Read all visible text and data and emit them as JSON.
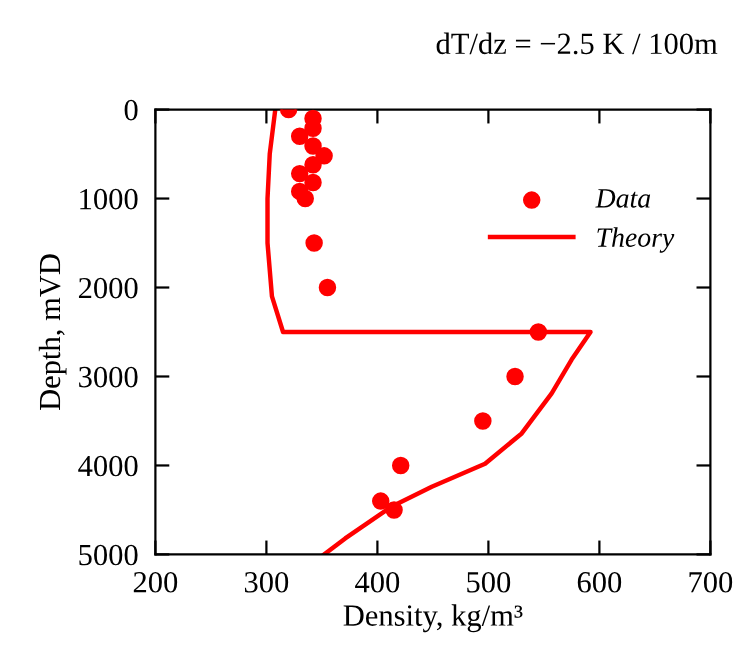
{
  "chart_data": {
    "type": "scatter",
    "xlabel": "Density, kg/m³",
    "ylabel": "Depth, mVD",
    "annotations": [
      "dT/dz = −2.5 K / 100m"
    ],
    "xlim": [
      200,
      700
    ],
    "xticks": [
      200,
      300,
      400,
      500,
      600,
      700
    ],
    "ylim": [
      5000,
      0
    ],
    "yticks": [
      0,
      1000,
      2000,
      3000,
      4000,
      5000
    ],
    "grid": false,
    "legend": "top right",
    "series": [
      {
        "name": "Data",
        "marker": "circle",
        "color": "#ff0000",
        "x": [
          320,
          342,
          342,
          330,
          342,
          352,
          342,
          330,
          342,
          330,
          335,
          343,
          355,
          545,
          524,
          495,
          421,
          403,
          415
        ],
        "values": [
          0,
          100,
          210,
          300,
          410,
          520,
          620,
          720,
          820,
          920,
          1000,
          1500,
          2000,
          2500,
          3000,
          3500,
          4000,
          4400,
          4500
        ]
      },
      {
        "name": "Theory",
        "type": "line",
        "line_style": "solid",
        "color": "#ff0000",
        "x": [
          308,
          303,
          301,
          301,
          305,
          315,
          592,
          575,
          557,
          530,
          497,
          449,
          413,
          371,
          352
        ],
        "values": [
          0,
          500,
          1000,
          1500,
          2100,
          2500,
          2500,
          2810,
          3190,
          3640,
          3980,
          4240,
          4460,
          4820,
          5000
        ]
      }
    ]
  }
}
